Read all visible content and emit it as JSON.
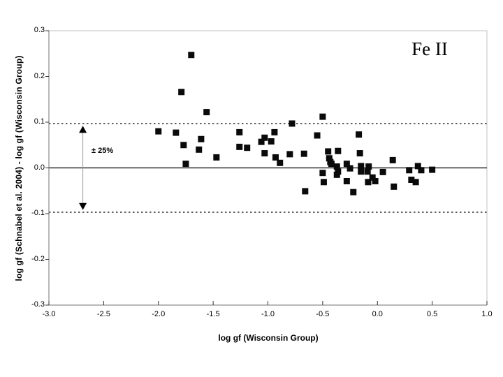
{
  "figure": {
    "corner_label": "Fe II",
    "annotation": "± 25%",
    "colors": {
      "marker": "#0a0a0a",
      "axis_line": "#707070",
      "frame": "#c0c0c0",
      "reference_line": "#000000",
      "arrow": "#999999",
      "background": "#ffffff"
    }
  },
  "chart_data": {
    "type": "scatter",
    "title": "",
    "xlabel": "log gf (Wisconsin Group)",
    "ylabel": "log gf (Schnabel et al. 2004) - log gf (Wisconsin Group)",
    "xlim": [
      -3.0,
      1.0
    ],
    "ylim": [
      -0.3,
      0.3
    ],
    "grid": false,
    "legend_position": "none",
    "xtick_labels": [
      "-3.0",
      "-2.5",
      "-2.0",
      "-1.5",
      "-1.0",
      "-0.5",
      "0.0",
      "0.5",
      "1.0"
    ],
    "xtick_values": [
      -3.0,
      -2.5,
      -2.0,
      -1.5,
      -1.0,
      -0.5,
      0.0,
      0.5,
      1.0
    ],
    "ytick_labels": [
      "0.3",
      "0.2",
      "0.1",
      "0.0",
      "-0.1",
      "-0.2",
      "-0.3"
    ],
    "ytick_values": [
      0.3,
      0.2,
      0.1,
      0.0,
      -0.1,
      -0.2,
      -0.3
    ],
    "reference_lines": {
      "solid_y": 0.0,
      "dashed_y": [
        0.097,
        -0.097
      ],
      "dashed_meaning": "± 25% in gf, i.e. ±0.097 dex"
    },
    "annotation_arrow": {
      "x": -2.69,
      "from_y": 0.092,
      "to_y": -0.092
    },
    "marker": "filled-square",
    "points": [
      [
        -2.0,
        0.08
      ],
      [
        -1.84,
        0.077
      ],
      [
        -1.79,
        0.166
      ],
      [
        -1.77,
        0.05
      ],
      [
        -1.75,
        0.009
      ],
      [
        -1.7,
        0.247
      ],
      [
        -1.63,
        0.04
      ],
      [
        -1.61,
        0.063
      ],
      [
        -1.56,
        0.122
      ],
      [
        -1.47,
        0.023
      ],
      [
        -1.26,
        0.078
      ],
      [
        -1.26,
        0.046
      ],
      [
        -1.19,
        0.044
      ],
      [
        -1.06,
        0.057
      ],
      [
        -1.03,
        0.066
      ],
      [
        -0.97,
        0.058
      ],
      [
        -0.94,
        0.078
      ],
      [
        -1.03,
        0.032
      ],
      [
        -0.93,
        0.023
      ],
      [
        -0.89,
        0.011
      ],
      [
        -0.8,
        0.03
      ],
      [
        -0.78,
        0.097
      ],
      [
        -0.67,
        0.031
      ],
      [
        -0.66,
        -0.051
      ],
      [
        -0.55,
        0.071
      ],
      [
        -0.5,
        0.112
      ],
      [
        -0.5,
        -0.011
      ],
      [
        -0.49,
        -0.031
      ],
      [
        -0.45,
        0.036
      ],
      [
        -0.44,
        0.021
      ],
      [
        -0.43,
        0.013
      ],
      [
        -0.42,
        0.009
      ],
      [
        -0.37,
        0.003
      ],
      [
        -0.36,
        0.037
      ],
      [
        -0.36,
        -0.008
      ],
      [
        -0.37,
        -0.015
      ],
      [
        -0.28,
        0.009
      ],
      [
        -0.28,
        -0.029
      ],
      [
        -0.25,
        -0.001
      ],
      [
        -0.22,
        -0.053
      ],
      [
        -0.17,
        0.073
      ],
      [
        -0.16,
        0.032
      ],
      [
        -0.15,
        0.004
      ],
      [
        -0.15,
        -0.008
      ],
      [
        -0.09,
        -0.008
      ],
      [
        -0.08,
        0.003
      ],
      [
        -0.085,
        -0.031
      ],
      [
        -0.045,
        -0.021
      ],
      [
        -0.02,
        -0.029
      ],
      [
        0.05,
        -0.009
      ],
      [
        0.14,
        0.017
      ],
      [
        0.15,
        -0.041
      ],
      [
        0.29,
        -0.005
      ],
      [
        0.31,
        -0.026
      ],
      [
        0.35,
        -0.031
      ],
      [
        0.37,
        0.004
      ],
      [
        0.4,
        -0.005
      ],
      [
        0.5,
        -0.004
      ]
    ]
  }
}
